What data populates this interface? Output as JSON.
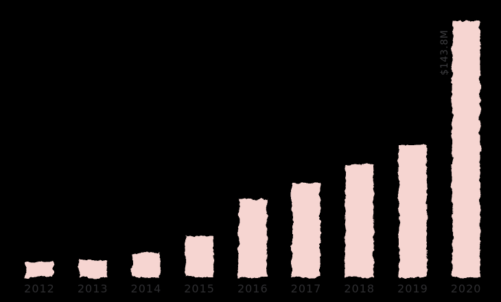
{
  "chart_data": {
    "type": "bar",
    "title": "",
    "xlabel": "",
    "ylabel": "",
    "unit": "$M",
    "categories": [
      "2012",
      "2013",
      "2014",
      "2015",
      "2016",
      "2017",
      "2018",
      "2019",
      "2020"
    ],
    "values": [
      8.5,
      9.6,
      13.8,
      23.1,
      44.2,
      53.1,
      63.4,
      74.2,
      143.8
    ],
    "ylim": [
      0,
      145
    ],
    "grid": false,
    "legend": false,
    "annotations": [
      {
        "category": "2020",
        "label": "$143.8M",
        "rotation": -90
      }
    ],
    "colors": {
      "background": "#000000",
      "bar": "#f6d5d1",
      "year_label": "#2e2e31",
      "annotation_label": "#3c3c3f"
    }
  }
}
